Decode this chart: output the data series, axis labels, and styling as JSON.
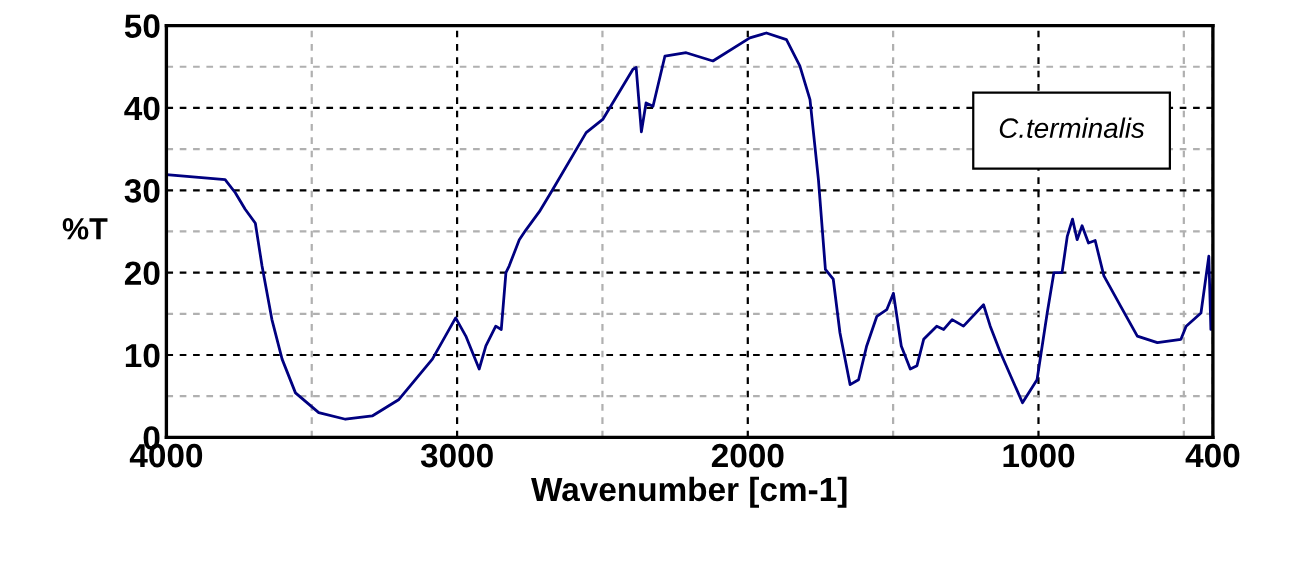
{
  "chart_data": {
    "type": "line",
    "xlabel": "Wavenumber [cm-1]",
    "ylabel": "%T",
    "annotations": [
      "C.terminalis"
    ],
    "xlim": [
      4000,
      400
    ],
    "xticks": [
      4000,
      {
        "value": 3500,
        "label": null
      },
      3000,
      {
        "value": 2500,
        "label": null
      },
      2000,
      {
        "value": 1500,
        "label": null
      },
      1000,
      {
        "value": 500,
        "label": null
      },
      400
    ],
    "ylim": [
      0,
      50
    ],
    "yticks": [
      0,
      {
        "value": 5,
        "label": null
      },
      10,
      {
        "value": 15,
        "label": null
      },
      20,
      {
        "value": 25,
        "label": null
      },
      30,
      {
        "value": 35,
        "label": null
      },
      40,
      {
        "value": 45,
        "label": null
      },
      50
    ],
    "grid": true,
    "marker": "none",
    "line_style": "solid",
    "series": [
      {
        "color": "#000080",
        "x": [
          4000,
          3798,
          3763,
          3729,
          3694,
          3671,
          3637,
          3602,
          3556,
          3476,
          3384,
          3292,
          3200,
          3085,
          3005,
          2970,
          2924,
          2901,
          2867,
          2848,
          2832,
          2821,
          2786,
          2763,
          2717,
          2671,
          2556,
          2499,
          2395,
          2384,
          2366,
          2350,
          2326,
          2285,
          2212,
          2120,
          1993,
          1936,
          1867,
          1821,
          1786,
          1757,
          1733,
          1706,
          1683,
          1648,
          1619,
          1591,
          1556,
          1522,
          1499,
          1472,
          1441,
          1418,
          1395,
          1350,
          1326,
          1297,
          1258,
          1189,
          1166,
          1131,
          1085,
          1055,
          1005,
          970,
          947,
          919,
          901,
          883,
          867,
          850,
          828,
          805,
          775,
          717,
          660,
          591,
          510,
          492,
          441,
          414,
          407,
          400
        ],
        "values": [
          31.9,
          31.3,
          29.7,
          27.7,
          26,
          20.8,
          14.3,
          9.5,
          5.4,
          3.0,
          2.2,
          2.6,
          4.6,
          9.5,
          14.5,
          12.3,
          8.3,
          11.1,
          13.5,
          13.1,
          20,
          20.8,
          24,
          25.2,
          27.4,
          30.1,
          37,
          38.6,
          44.7,
          44.9,
          37.1,
          40.6,
          40.2,
          46.3,
          46.7,
          45.7,
          48.5,
          49.1,
          48.3,
          45.1,
          41,
          31.3,
          20.4,
          19.2,
          12.7,
          6.4,
          7,
          11.1,
          14.7,
          15.5,
          17.5,
          11.1,
          8.3,
          8.7,
          11.9,
          13.5,
          13.1,
          14.3,
          13.5,
          16.1,
          13.5,
          10.3,
          6.6,
          4.2,
          7,
          15.1,
          20,
          20,
          24.4,
          26.5,
          24,
          25.7,
          23.6,
          23.9,
          19.6,
          15.9,
          12.3,
          11.5,
          11.9,
          13.5,
          15.1,
          22,
          13.1,
          19.2
        ]
      }
    ]
  }
}
